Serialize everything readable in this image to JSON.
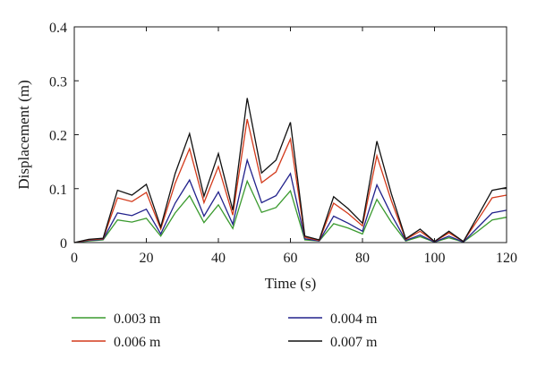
{
  "chart_data": {
    "type": "line",
    "xlabel": "Time (s)",
    "ylabel": "Displacement (m)",
    "xlim": [
      0,
      120
    ],
    "ylim": [
      0,
      0.4
    ],
    "xticks": [
      "0",
      "20",
      "40",
      "60",
      "80",
      "100",
      "120"
    ],
    "yticks": [
      "0",
      "0.1",
      "0.2",
      "0.3",
      "0.4"
    ],
    "grid": false,
    "legend_position": "bottom",
    "x": [
      0,
      4,
      8,
      12,
      16,
      20,
      24,
      28,
      32,
      36,
      40,
      44,
      48,
      52,
      56,
      60,
      64,
      68,
      72,
      76,
      80,
      84,
      88,
      92,
      96,
      100,
      104,
      108,
      112,
      116,
      120
    ],
    "series": [
      {
        "name": "0.003 m",
        "color": "#3a9a2e",
        "values": [
          0,
          0.003,
          0.005,
          0.042,
          0.038,
          0.045,
          0.012,
          0.055,
          0.087,
          0.037,
          0.07,
          0.026,
          0.114,
          0.056,
          0.065,
          0.096,
          0.005,
          0.003,
          0.035,
          0.027,
          0.016,
          0.08,
          0.038,
          0.003,
          0.011,
          0.001,
          0.009,
          0.001,
          0.021,
          0.042,
          0.047
        ]
      },
      {
        "name": "0.006 m",
        "color": "#d33a1b",
        "values": [
          0,
          0.005,
          0.007,
          0.083,
          0.076,
          0.093,
          0.025,
          0.11,
          0.174,
          0.074,
          0.141,
          0.051,
          0.229,
          0.111,
          0.131,
          0.192,
          0.01,
          0.004,
          0.073,
          0.054,
          0.031,
          0.161,
          0.078,
          0.006,
          0.021,
          0.002,
          0.018,
          0.002,
          0.042,
          0.083,
          0.088
        ]
      },
      {
        "name": "0.004 m",
        "color": "#22228c",
        "values": [
          0,
          0.004,
          0.006,
          0.055,
          0.05,
          0.062,
          0.016,
          0.073,
          0.116,
          0.049,
          0.094,
          0.034,
          0.153,
          0.074,
          0.087,
          0.128,
          0.007,
          0.003,
          0.049,
          0.036,
          0.021,
          0.107,
          0.052,
          0.004,
          0.014,
          0.001,
          0.012,
          0.001,
          0.028,
          0.055,
          0.06
        ]
      },
      {
        "name": "0.007 m",
        "color": "#111111",
        "values": [
          0,
          0.006,
          0.008,
          0.097,
          0.088,
          0.108,
          0.029,
          0.128,
          0.202,
          0.086,
          0.165,
          0.06,
          0.268,
          0.129,
          0.153,
          0.223,
          0.012,
          0.005,
          0.085,
          0.063,
          0.036,
          0.188,
          0.091,
          0.007,
          0.025,
          0.002,
          0.021,
          0.002,
          0.049,
          0.097,
          0.102
        ]
      }
    ]
  }
}
